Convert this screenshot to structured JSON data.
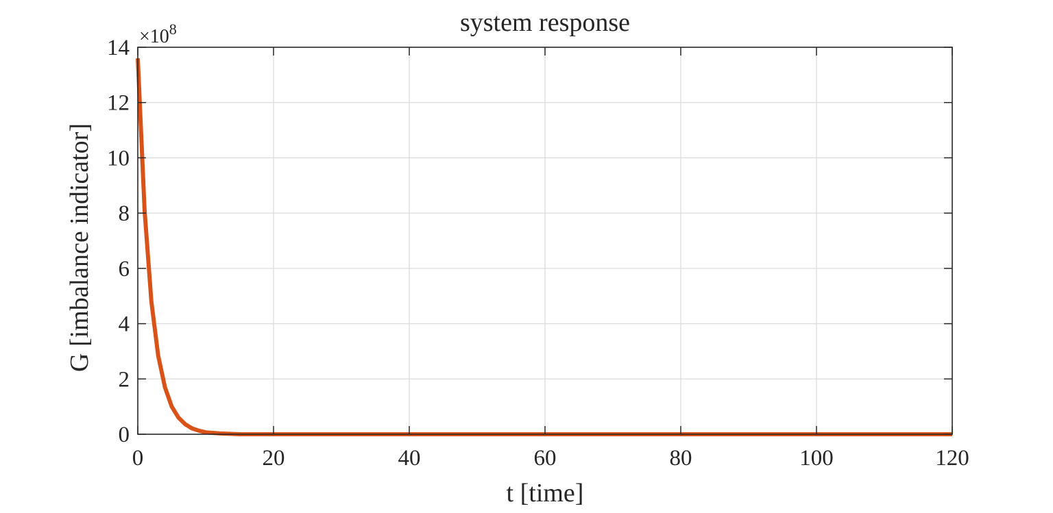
{
  "chart_data": {
    "type": "line",
    "title": "system response",
    "xlabel": "t [time]",
    "ylabel": "G [imbalance indicator]",
    "xlim": [
      0,
      120
    ],
    "ylim": [
      0,
      14
    ],
    "y_exponent_label": "×10",
    "y_exponent_power": "8",
    "x_ticks": [
      0,
      20,
      40,
      60,
      80,
      100,
      120
    ],
    "x_tick_labels": [
      "0",
      "20",
      "40",
      "60",
      "80",
      "100",
      "120"
    ],
    "y_ticks": [
      0,
      2,
      4,
      6,
      8,
      10,
      12,
      14
    ],
    "y_tick_labels": [
      "0",
      "2",
      "4",
      "6",
      "8",
      "10",
      "12",
      "14"
    ],
    "grid": true,
    "box": true,
    "series": [
      {
        "color": "#D95319",
        "x": [
          0,
          1,
          2,
          3,
          4,
          5,
          6,
          7,
          8,
          9,
          10,
          12,
          15,
          20,
          30,
          40,
          60,
          80,
          100,
          120
        ],
        "y": [
          13.6,
          8.1,
          4.8,
          2.85,
          1.7,
          1.0,
          0.6,
          0.36,
          0.21,
          0.13,
          0.07,
          0.03,
          0.0,
          0.0,
          0.0,
          0.0,
          0.0,
          0.0,
          0.0,
          0.0
        ]
      }
    ]
  }
}
